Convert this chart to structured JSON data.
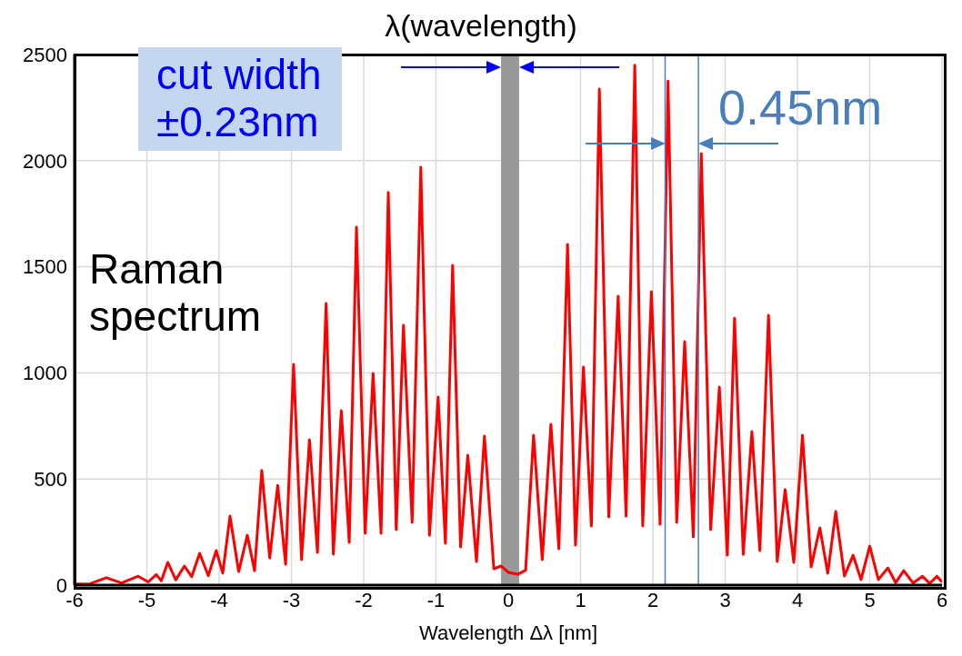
{
  "chart_data": {
    "type": "line",
    "title": "λ(wavelength)",
    "xlabel": "Wavelength Δλ [nm]",
    "xlim": [
      -6,
      6
    ],
    "xticks": [
      -6,
      -5,
      -4,
      -3,
      -2,
      -1,
      0,
      1,
      2,
      3,
      4,
      5,
      6
    ],
    "ylim": [
      0,
      2500
    ],
    "yticks": [
      0,
      500,
      1000,
      1500,
      2000,
      2500
    ],
    "grid": true,
    "marker": "none",
    "line_style": "solid",
    "series": [
      {
        "color": "#ff0000",
        "x": [
          -6,
          -5.8,
          -5.56,
          -5.35,
          -5.12,
          -4.98,
          -4.87,
          -4.8,
          -4.71,
          -4.6,
          -4.48,
          -4.38,
          -4.27,
          -4.15,
          -4.04,
          -3.95,
          -3.85,
          -3.73,
          -3.61,
          -3.51,
          -3.41,
          -3.3,
          -3.19,
          -3.08,
          -2.97,
          -2.86,
          -2.75,
          -2.64,
          -2.52,
          -2.42,
          -2.31,
          -2.2,
          -2.1,
          -1.98,
          -1.87,
          -1.76,
          -1.66,
          -1.55,
          -1.45,
          -1.33,
          -1.21,
          -1.09,
          -0.97,
          -0.87,
          -0.77,
          -0.66,
          -0.56,
          -0.44,
          -0.33,
          -0.2,
          -0.1,
          0,
          0.13,
          0.24,
          0.35,
          0.47,
          0.59,
          0.7,
          0.82,
          0.93,
          1.04,
          1.15,
          1.26,
          1.39,
          1.52,
          1.63,
          1.75,
          1.86,
          1.98,
          2.1,
          2.21,
          2.33,
          2.44,
          2.56,
          2.67,
          2.8,
          2.92,
          3.03,
          3.13,
          3.25,
          3.37,
          3.48,
          3.6,
          3.72,
          3.83,
          3.95,
          4.07,
          4.19,
          4.31,
          4.42,
          4.53,
          4.65,
          4.77,
          4.88,
          5,
          5.12,
          5.25,
          5.36,
          5.47,
          5.6,
          5.73,
          5.83,
          5.93,
          6
        ],
        "values": [
          5,
          5,
          35,
          10,
          42,
          15,
          50,
          20,
          107,
          25,
          90,
          40,
          150,
          45,
          163,
          56,
          325,
          64,
          235,
          68,
          540,
          128,
          470,
          98,
          1040,
          120,
          685,
          154,
          1327,
          146,
          822,
          201,
          1687,
          244,
          997,
          244,
          1850,
          261,
          1224,
          295,
          1969,
          235,
          886,
          197,
          1507,
          180,
          612,
          111,
          702,
          77,
          90,
          60,
          51,
          70,
          706,
          120,
          758,
          171,
          1605,
          188,
          1027,
          278,
          2337,
          321,
          1361,
          325,
          2450,
          278,
          1383,
          287,
          2375,
          295,
          1147,
          227,
          2033,
          261,
          933,
          141,
          1258,
          145,
          723,
          163,
          1271,
          111,
          450,
          107,
          706,
          86,
          270,
          56,
          347,
          43,
          141,
          26,
          184,
          26,
          81,
          12,
          68,
          10,
          42,
          8,
          42,
          15
        ]
      }
    ],
    "bands": [
      {
        "axis": "x",
        "from": -0.1,
        "to": 0.15,
        "color": "#999999"
      }
    ],
    "ref_lines": [
      {
        "axis": "x",
        "value": 2.17,
        "color": "#4a7ebb"
      },
      {
        "axis": "x",
        "value": 2.63,
        "color": "#4a7ebb"
      }
    ],
    "annotations": [
      "cut width\n±0.23nm",
      "0.45nm",
      "Raman\nspectrum"
    ]
  }
}
